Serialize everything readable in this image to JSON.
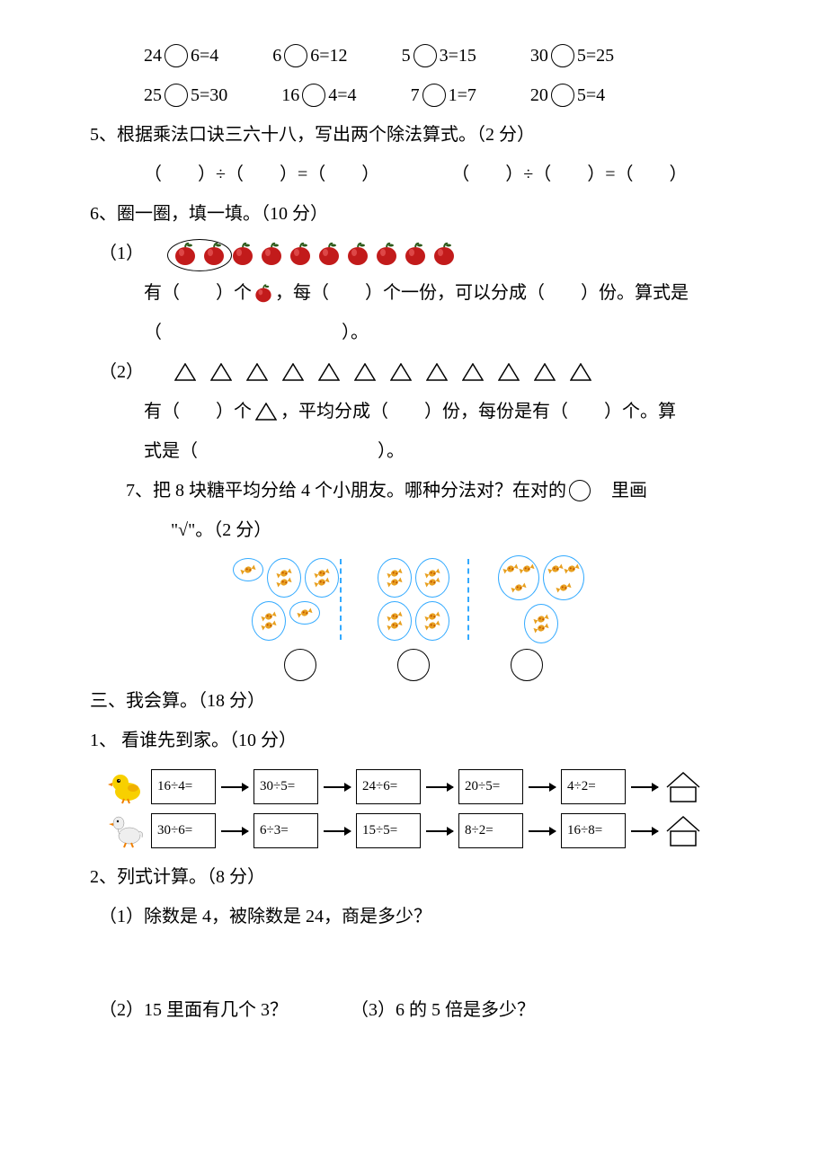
{
  "colors": {
    "apple_fill": "#c21b1b",
    "apple_shine": "#e85a5a",
    "apple_stem": "#2c5a1a",
    "candy_border": "#33aaff",
    "candy_fill": "#e8a020",
    "bird_yellow": "#f8d000",
    "bird_orange": "#f08000",
    "goose_body": "#eeeeee",
    "goose_beak": "#f08000"
  },
  "q4_row1": [
    {
      "a": "24",
      "b": "6=4"
    },
    {
      "a": "6",
      "b": "6=12"
    },
    {
      "a": "5",
      "b": "3=15"
    },
    {
      "a": "30",
      "b": "5=25"
    }
  ],
  "q4_row2": [
    {
      "a": "25",
      "b": "5=30"
    },
    {
      "a": "16",
      "b": "4=4"
    },
    {
      "a": "7",
      "b": "1=7"
    },
    {
      "a": "20",
      "b": "5=4"
    }
  ],
  "q5": {
    "title": "5、根据乘法口诀三六十八，写出两个除法算式。（2 分）",
    "blank": "（　　）÷（　　）=（　　）"
  },
  "q6": {
    "title": "6、圈一圈，填一填。（10 分）",
    "p1a": "（1）",
    "p1_text1": "有（　　）个",
    "p1_text2": "，每（　　）个一份，可以分成（　　）份。算式是",
    "p1_text3": "（　　　　　　　　　　）。",
    "p2a": "（2）",
    "p2_text1": "有（　　）个",
    "p2_text2": "，平均分成（　　）份，每份是有（　　）个。算",
    "p2_text3": "式是（　　　　　　　　　　）。",
    "apple_count": 10,
    "circled_apples": 2,
    "triangle_count": 12
  },
  "q7": {
    "title": "7、把 8 块糖平均分给 4 个小朋友。哪种分法对？在对的",
    "title2": "里画",
    "title3": "\"√\"。（2 分）",
    "groups": [
      [
        1,
        2,
        2,
        2,
        1
      ],
      [
        2,
        2,
        2,
        2
      ],
      [
        3,
        3,
        2
      ]
    ]
  },
  "sec3": {
    "title": "三、我会算。（18 分）",
    "q1": "1、 看谁先到家。（10 分）",
    "chain1": [
      "16÷4=",
      "30÷5=",
      "24÷6=",
      "20÷5=",
      "4÷2="
    ],
    "chain2": [
      "30÷6=",
      "6÷3=",
      "15÷5=",
      "8÷2=",
      "16÷8="
    ],
    "q2": "2、列式计算。（8 分）",
    "q2_1": "（1）除数是 4，被除数是 24，商是多少？",
    "q2_2": "（2）15 里面有几个 3？",
    "q2_3": "（3）6 的 5 倍是多少？"
  }
}
